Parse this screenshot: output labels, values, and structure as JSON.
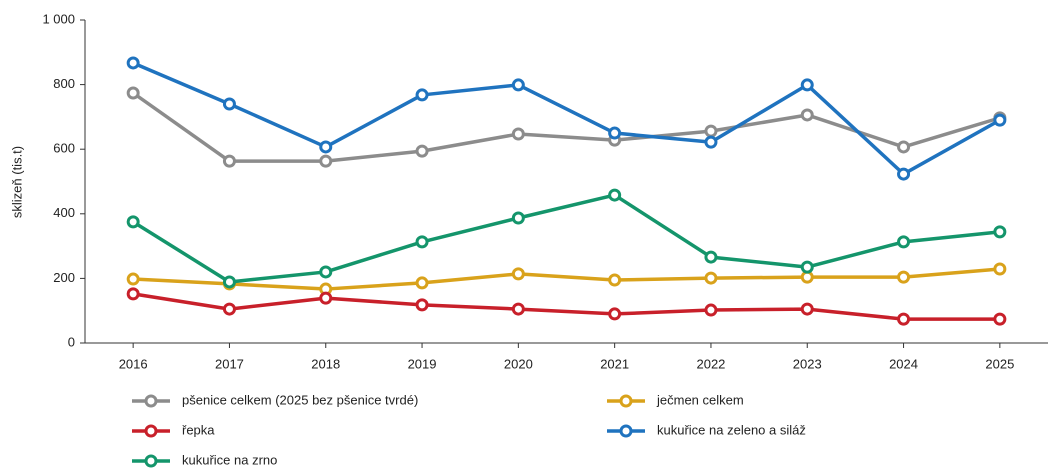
{
  "chart_data": {
    "type": "line",
    "y_label": "sklizeň (tis.t)",
    "categories": [
      "2016",
      "2017",
      "2018",
      "2019",
      "2020",
      "2021",
      "2022",
      "2023",
      "2024",
      "2025"
    ],
    "series": [
      {
        "name": "pšenice celkem (2025 bez pšenice tvrdé)",
        "color": "#8c8c8c",
        "values": [
          774,
          563,
          563,
          594,
          647,
          628,
          656,
          706,
          607,
          697
        ]
      },
      {
        "name": "ječmen celkem",
        "color": "#d9a21b",
        "values": [
          198,
          183,
          167,
          186,
          214,
          195,
          201,
          204,
          204,
          229
        ]
      },
      {
        "name": "řepka",
        "color": "#c8202a",
        "values": [
          152,
          105,
          139,
          118,
          105,
          90,
          102,
          105,
          74,
          74
        ]
      },
      {
        "name": "kukuřice na zeleno a siláž",
        "color": "#1f73bf",
        "values": [
          867,
          740,
          607,
          768,
          799,
          650,
          622,
          799,
          523,
          690
        ]
      },
      {
        "name": "kukuřice na zrno",
        "color": "#14956b",
        "values": [
          375,
          189,
          220,
          313,
          387,
          458,
          266,
          235,
          313,
          344
        ]
      }
    ],
    "ylim": [
      0,
      1000
    ],
    "yticks": [
      0,
      200,
      400,
      600,
      800,
      {
        "value": 1000,
        "label": "1 000"
      }
    ],
    "grid": false
  }
}
